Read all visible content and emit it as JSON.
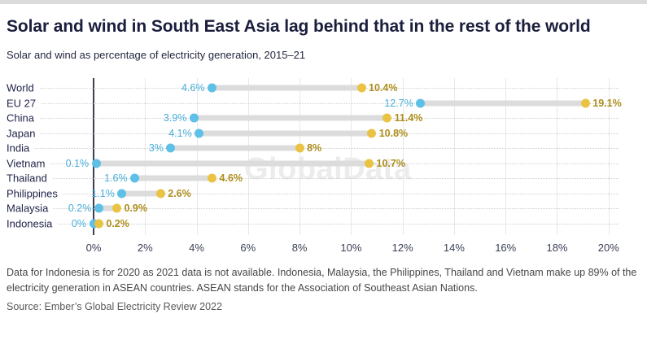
{
  "header": {
    "title": "Solar and wind in South East Asia lag behind that in the rest of the world",
    "subtitle": "Solar and wind as percentage of electricity generation, 2015–21"
  },
  "watermark": "GlobalData",
  "colors": {
    "accent_navy": "#1a1e3c",
    "series_2015_dot": "#5ec0e6",
    "series_2015_label": "#49aed9",
    "series_2021_dot": "#eac344",
    "series_2021_label": "#ad8e1d",
    "connector": "#dcdcdc",
    "axis_line": "#3c4052",
    "gridline": "#e8e8e8"
  },
  "chart_data": {
    "type": "dumbbell",
    "title": "Solar and wind in South East Asia lag behind that in the rest of the world",
    "subtitle": "Solar and wind as percentage of electricity generation, 2015–21",
    "categories": [
      "World",
      "EU 27",
      "China",
      "Japan",
      "India",
      "Vietnam",
      "Thailand",
      "Philippines",
      "Malaysia",
      "Indonesia"
    ],
    "series": [
      {
        "name": "2015",
        "values": [
          4.6,
          12.7,
          3.9,
          4.1,
          3,
          0.1,
          1.6,
          1.1,
          0.2,
          0
        ],
        "labels": [
          "4.6%",
          "12.7%",
          "3.9%",
          "4.1%",
          "3%",
          "0.1%",
          "1.6%",
          "1.1%",
          "0.2%",
          "0%"
        ],
        "color": "#5ec0e6",
        "label_color": "#49aed9"
      },
      {
        "name": "2021",
        "values": [
          10.4,
          19.1,
          11.4,
          10.8,
          8,
          10.7,
          4.6,
          2.6,
          0.9,
          0.2
        ],
        "labels": [
          "10.4%",
          "19.1%",
          "11.4%",
          "10.8%",
          "8%",
          "10.7%",
          "4.6%",
          "2.6%",
          "0.9%",
          "0.2%"
        ],
        "color": "#eac344",
        "label_color": "#ad8e1d"
      }
    ],
    "x_ticks": [
      {
        "value": 0,
        "label": "0%"
      },
      {
        "value": 2,
        "label": "2%"
      },
      {
        "value": 4,
        "label": "4%"
      },
      {
        "value": 6,
        "label": "6%"
      },
      {
        "value": 8,
        "label": "8%"
      },
      {
        "value": 10,
        "label": "10%"
      },
      {
        "value": 12,
        "label": "12%"
      },
      {
        "value": 14,
        "label": "14%"
      },
      {
        "value": 16,
        "label": "16%"
      },
      {
        "value": 18,
        "label": "18%"
      },
      {
        "value": 20,
        "label": "20%"
      }
    ],
    "xlim": [
      0,
      20.45
    ],
    "grid": "vertical",
    "legend": "none"
  },
  "footer": {
    "note": "Data for Indonesia is for 2020 as 2021 data is not available. Indonesia, Malaysia, the Philippines, Thailand and Vietnam make up 89% of the electricity generation in ASEAN countries. ASEAN stands for the Association of Southeast Asian Nations.",
    "source": "Source: Ember’s Global Electricity Review 2022"
  }
}
